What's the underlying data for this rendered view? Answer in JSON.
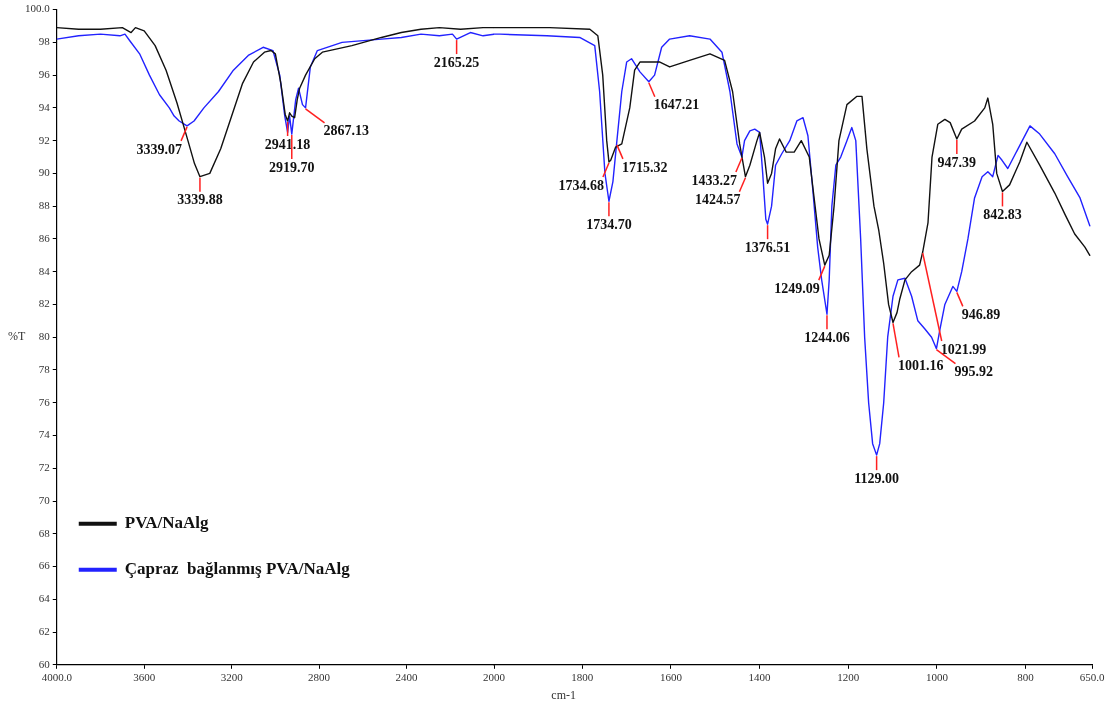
{
  "chart_data": [
    {
      "type": "line",
      "ylabel": "%T",
      "xlim": [
        4000,
        2000
      ],
      "xticks": [
        {
          "value": 4000,
          "label": "4000.0"
        },
        3600,
        3200,
        2800,
        2400,
        2000
      ],
      "ylim": [
        60,
        100
      ],
      "yticks": [
        60,
        62,
        64,
        66,
        68,
        70,
        72,
        74,
        76,
        78,
        80,
        82,
        84,
        86,
        88,
        90,
        92,
        94,
        96,
        98,
        {
          "value": 100,
          "label": "100.0"
        }
      ],
      "grid": false,
      "legend": "bottom left",
      "marker": "none",
      "line_style": "solid",
      "series": [
        {
          "name": "PVA/NaAlg",
          "color": "#111111",
          "x": [
            4000,
            3900,
            3800,
            3700,
            3660,
            3640,
            3600,
            3550,
            3500,
            3450,
            3400,
            3370,
            3345,
            3300,
            3250,
            3200,
            3150,
            3100,
            3050,
            3020,
            3000,
            2975,
            2955,
            2944,
            2935,
            2925,
            2912,
            2900,
            2889,
            2862,
            2820,
            2785,
            2650,
            2515,
            2424,
            2334,
            2250,
            2153,
            2050,
            2000
          ],
          "values": [
            98.9,
            98.8,
            98.8,
            98.9,
            98.6,
            98.9,
            98.7,
            97.8,
            96.3,
            94.3,
            92,
            90.6,
            89.8,
            90,
            91.5,
            93.5,
            95.5,
            96.8,
            97.4,
            97.5,
            97.3,
            95.5,
            93.6,
            93.2,
            93.7,
            93.5,
            93.4,
            94.5,
            95.2,
            96,
            97,
            97.4,
            97.8,
            98.3,
            98.6,
            98.8,
            98.9,
            98.8,
            98.9,
            98.9
          ]
        },
        {
          "name": "Çapraz  bağlanmış PVA/NaAlg",
          "color": "#2222ff",
          "x": [
            4000,
            3900,
            3800,
            3711,
            3688,
            3666,
            3621,
            3576,
            3530,
            3485,
            3463,
            3440,
            3404,
            3372,
            3327,
            3260,
            3192,
            3124,
            3056,
            3011,
            2980,
            2957,
            2944,
            2935,
            2925,
            2907,
            2894,
            2876,
            2862,
            2840,
            2808,
            2695,
            2515,
            2424,
            2334,
            2250,
            2190,
            2171,
            2108,
            2050,
            2000
          ],
          "values": [
            98.2,
            98.4,
            98.5,
            98.4,
            98.5,
            98.1,
            97.3,
            96,
            94.8,
            94,
            93.5,
            93.2,
            92.9,
            93.2,
            94,
            95,
            96.3,
            97.2,
            97.7,
            97.5,
            96,
            93.5,
            92.5,
            93.5,
            92.4,
            94.5,
            95.2,
            94.2,
            94,
            96.5,
            97.5,
            98,
            98.2,
            98.3,
            98.5,
            98.4,
            98.5,
            98.2,
            98.6,
            98.4,
            98.5
          ]
        }
      ],
      "annotations": [
        {
          "text": "3339.07",
          "x": 3404,
          "y": 92.9
        },
        {
          "text": "3339.88",
          "x": 3345,
          "y": 89.8
        },
        {
          "text": "2941.18",
          "x": 2944,
          "y": 93.2
        },
        {
          "text": "2919.70",
          "x": 2925,
          "y": 92.4
        },
        {
          "text": "2867.13",
          "x": 2862,
          "y": 94
        },
        {
          "text": "2165.25",
          "x": 2171,
          "y": 98.2
        }
      ]
    },
    {
      "type": "line",
      "xlabel": "cm-1",
      "xlim": [
        2000,
        650
      ],
      "xticks": [
        1800,
        1600,
        1400,
        1200,
        1000,
        800,
        {
          "value": 650,
          "label": "650.0"
        }
      ],
      "ylim": [
        60,
        100
      ],
      "tick_labels": "x",
      "grid": false,
      "marker": "none",
      "line_style": "solid",
      "series": [
        {
          "color": "#111111",
          "x": [
            2000,
            1986,
            1874,
            1783,
            1765,
            1754,
            1745,
            1740,
            1736,
            1725,
            1711,
            1693,
            1682,
            1670,
            1625,
            1603,
            1558,
            1512,
            1479,
            1461,
            1445,
            1432,
            1422,
            1406,
            1400,
            1389,
            1382,
            1373,
            1364,
            1355,
            1340,
            1322,
            1306,
            1288,
            1277,
            1266,
            1253,
            1243,
            1232,
            1221,
            1203,
            1181,
            1169,
            1158,
            1142,
            1131,
            1120,
            1109,
            1099,
            1090,
            1084,
            1072,
            1057,
            1039,
            1032,
            1020,
            1011,
            998,
            982,
            970,
            955,
            944,
            915,
            892,
            885,
            874,
            865,
            852,
            836,
            813,
            797,
            768,
            734,
            711,
            689,
            666,
            655
          ],
          "values": [
            98.9,
            98.9,
            98.9,
            98.8,
            98.4,
            96,
            92,
            90.7,
            90.8,
            91.6,
            91.8,
            94,
            96.3,
            96.8,
            96.8,
            96.5,
            96.9,
            97.3,
            96.9,
            95,
            91.8,
            89.8,
            90.5,
            92,
            92.5,
            91,
            89.4,
            90,
            91.5,
            92.1,
            91.3,
            91.3,
            92,
            91,
            88.5,
            86,
            84.4,
            85,
            88,
            92,
            94.2,
            94.7,
            94.7,
            91.5,
            88,
            86.5,
            84.5,
            82,
            80.9,
            81.5,
            82.3,
            83.5,
            84,
            84.4,
            85.2,
            87,
            91,
            93,
            93.3,
            93.1,
            92.1,
            92.7,
            93.2,
            94,
            94.6,
            93,
            90,
            88.9,
            89.3,
            90.7,
            91.9,
            90.5,
            88.8,
            87.5,
            86.3,
            85.5,
            85
          ]
        },
        {
          "color": "#2222ff",
          "x": [
            2000,
            1986,
            1880,
            1806,
            1772,
            1761,
            1749,
            1740,
            1731,
            1722,
            1711,
            1700,
            1689,
            1670,
            1650,
            1637,
            1621,
            1603,
            1558,
            1512,
            1485,
            1467,
            1451,
            1440,
            1434,
            1422,
            1411,
            1400,
            1393,
            1386,
            1382,
            1373,
            1364,
            1350,
            1332,
            1316,
            1302,
            1291,
            1280,
            1269,
            1260,
            1248,
            1243,
            1237,
            1228,
            1217,
            1203,
            1192,
            1183,
            1172,
            1163,
            1154,
            1145,
            1136,
            1129,
            1120,
            1111,
            1099,
            1088,
            1072,
            1057,
            1043,
            1027,
            1012,
            1001,
            993,
            982,
            964,
            955,
            944,
            930,
            915,
            898,
            885,
            874,
            862,
            853,
            840,
            817,
            790,
            768,
            734,
            705,
            677,
            655
          ],
          "values": [
            98.5,
            98.5,
            98.4,
            98.3,
            97.8,
            95,
            90,
            88.3,
            89.5,
            92,
            95,
            96.8,
            97,
            96.2,
            95.6,
            96,
            97.7,
            98.2,
            98.4,
            98.2,
            97.4,
            95,
            91.8,
            91,
            92,
            92.6,
            92.7,
            92.5,
            90,
            87.2,
            86.9,
            88,
            90.5,
            91.2,
            92,
            93.2,
            93.4,
            92.3,
            89,
            85.5,
            83.5,
            81.4,
            83.5,
            88,
            90.5,
            91,
            92,
            92.8,
            92,
            86,
            80,
            76,
            73.5,
            72.8,
            73.5,
            76,
            80,
            82.5,
            83.5,
            83.6,
            82.5,
            81,
            80.5,
            80,
            79.3,
            80.5,
            82,
            83.1,
            82.8,
            84,
            86,
            88.5,
            89.8,
            90.1,
            89.8,
            91.1,
            90.8,
            90.3,
            91.5,
            92.9,
            92.4,
            91.2,
            89.8,
            88.5,
            86.8
          ]
        }
      ],
      "annotations": [
        {
          "text": "1734.68",
          "x": 1740,
          "y": 90.7
        },
        {
          "text": "1734.70",
          "x": 1740,
          "y": 88.3
        },
        {
          "text": "1715.32",
          "x": 1722,
          "y": 91.8
        },
        {
          "text": "1647.21",
          "x": 1650,
          "y": 95.6
        },
        {
          "text": "1433.27",
          "x": 1440,
          "y": 91
        },
        {
          "text": "1424.57",
          "x": 1432,
          "y": 89.8
        },
        {
          "text": "1376.51",
          "x": 1382,
          "y": 86.9
        },
        {
          "text": "1249.09",
          "x": 1253,
          "y": 84.4
        },
        {
          "text": "1244.06",
          "x": 1248,
          "y": 81.4
        },
        {
          "text": "1129.00",
          "x": 1136,
          "y": 72.8
        },
        {
          "text": "1001.16",
          "x": 1099,
          "y": 80.9
        },
        {
          "text": "1021.99",
          "x": 1032,
          "y": 85.2
        },
        {
          "text": "995.92",
          "x": 1001,
          "y": 79.3
        },
        {
          "text": "946.89",
          "x": 955,
          "y": 82.8
        },
        {
          "text": "947.39",
          "x": 955,
          "y": 92.1
        },
        {
          "text": "842.83",
          "x": 852,
          "y": 88.9
        }
      ]
    }
  ]
}
